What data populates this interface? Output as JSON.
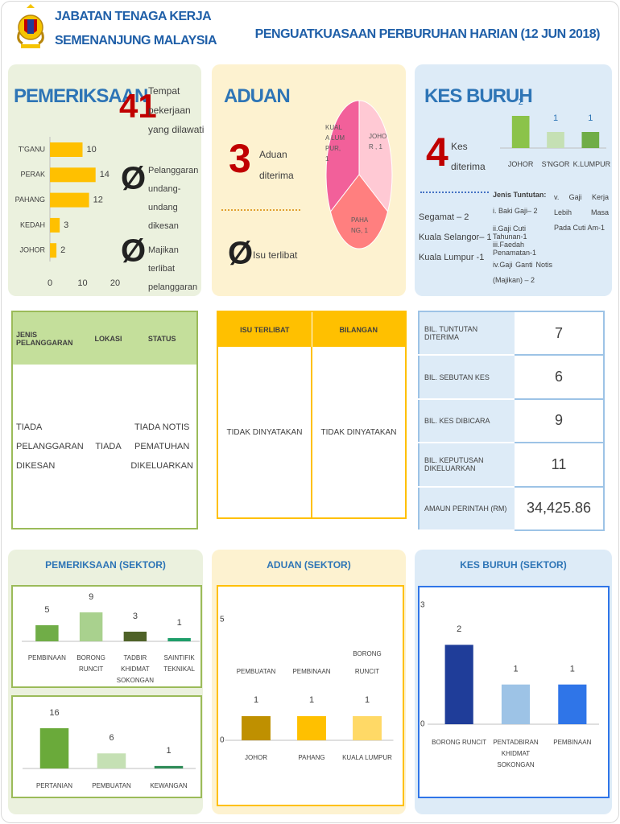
{
  "header": {
    "org": [
      "JABATAN TENAGA KERJA",
      "SEMENANJUNG MALAYSIA"
    ],
    "title": "PENGUATKUASAAN PERBURUHAN HARIAN (12 JUN 2018)"
  },
  "pemeriksaan": {
    "title": "PEMERIKSAAN",
    "stats": [
      {
        "value": 41,
        "label": "Tempat pekerjaan yang dilawati"
      },
      {
        "value": "Ø",
        "label": "Pelanggaran undang-undang dikesan"
      },
      {
        "value": "Ø",
        "label": "Majikan terlibat pelanggaran"
      }
    ]
  },
  "aduan": {
    "title": "ADUAN",
    "stats": [
      {
        "value": 3,
        "label": "Aduan diterima"
      },
      {
        "value": "Ø",
        "label": "Isu terlibat"
      }
    ]
  },
  "kes_buruh": {
    "title": "KES BURUH",
    "stats": [
      {
        "value": 4,
        "label": "Kes diterima"
      }
    ],
    "locations": [
      "Segamat – 2",
      "Kuala Selangor– 1",
      "Kuala Lumpur -1"
    ],
    "claims_title": "Jenis Tuntutan:",
    "claims": [
      "i. Baki Gaji– 2",
      "ii.Gaji Cuti Tahunan-1",
      "iii.Faedah Penamatan-1",
      "iv.Gaji Ganti Notis (Majikan) – 2",
      "v. Gaji Kerja Lebih Masa Pada Cuti Am-1"
    ]
  },
  "tables": {
    "pelanggaran": {
      "headers": [
        "JENIS PELANGGARAN",
        "LOKASI",
        "STATUS"
      ],
      "rows": [
        [
          "TIADA PELANGGARAN DIKESAN",
          "TIADA",
          "TIADA NOTIS PEMATUHAN DIKELUARKAN"
        ]
      ]
    },
    "isu": {
      "headers": [
        "ISU TERLIBAT",
        "BILANGAN"
      ],
      "rows": [
        [
          "TIDAK DINYATAKAN",
          "TIDAK DINYATAKAN"
        ]
      ]
    },
    "kes": {
      "rows": [
        [
          "BIL. TUNTUTAN DITERIMA",
          7
        ],
        [
          "BIL. SEBUTAN KES",
          6
        ],
        [
          "BIL. KES DIBICARA",
          9
        ],
        [
          "BIL. KEPUTUSAN DIKELUARKAN",
          11
        ],
        [
          "AMAUN PERINTAH (RM)",
          "34,425.86"
        ]
      ]
    }
  },
  "sector_titles": [
    "PEMERIKSAAN (SEKTOR)",
    "ADUAN (SEKTOR)",
    "KES BURUH (SEKTOR)"
  ],
  "chart_data": [
    {
      "type": "bar",
      "orientation": "horizontal",
      "categories": [
        "T'GANU",
        "PERAK",
        "PAHANG",
        "KEDAH",
        "JOHOR"
      ],
      "values": [
        10,
        14,
        12,
        3,
        2
      ],
      "color": "#ffc000",
      "xlim": [
        0,
        20
      ],
      "xticks": [
        0,
        10,
        20
      ]
    },
    {
      "type": "pie",
      "labels": [
        "KUALA LUMPUR, 1",
        "JOHOR , 1",
        "PAHANG, 1"
      ],
      "values": [
        1,
        1,
        1
      ],
      "colors": [
        "#f2609a",
        "#ffc9d4",
        "#ff7f7f"
      ]
    },
    {
      "type": "bar",
      "categories": [
        "JOHOR",
        "S'NGOR",
        "K.LUMPUR"
      ],
      "values": [
        2,
        1,
        1
      ],
      "colors": [
        "#8bc34a",
        "#c5e0b4",
        "#70ad47"
      ]
    },
    {
      "type": "bar",
      "categories": [
        "PEMBINAAN",
        "BORONG RUNCIT",
        "TADBIR KHIDMAT SOKONGAN",
        "SAINTIFIK TEKNIKAL"
      ],
      "values": [
        5,
        9,
        3,
        1
      ],
      "colors": [
        "#70ad47",
        "#a9d18e",
        "#4f6228",
        "#1e9e6a"
      ]
    },
    {
      "type": "bar",
      "categories": [
        "PERTANIAN",
        "PEMBUATAN",
        "KEWANGAN"
      ],
      "values": [
        16,
        6,
        1
      ],
      "colors": [
        "#6aaa3a",
        "#c5e0b4",
        "#2e8b57"
      ]
    },
    {
      "type": "bar",
      "categories": [
        "JOHOR",
        "PAHANG",
        "KUALA LUMPUR"
      ],
      "bar_labels": [
        "PEMBUATAN",
        "PEMBINAAN",
        "BORONG RUNCIT"
      ],
      "values": [
        1,
        1,
        1
      ],
      "colors": [
        "#bf9000",
        "#ffc000",
        "#ffd966"
      ],
      "ylim": [
        0,
        5
      ],
      "yticks": [
        0,
        5
      ]
    },
    {
      "type": "bar",
      "categories": [
        "BORONG RUNCIT",
        "PENTADBIRAN KHIDMAT SOKONGAN",
        "PEMBINAAN"
      ],
      "values": [
        2,
        1,
        1
      ],
      "colors": [
        "#1f3d99",
        "#9dc3e6",
        "#2f75e8"
      ],
      "ylim": [
        0,
        3
      ],
      "yticks": [
        0,
        3
      ]
    }
  ]
}
